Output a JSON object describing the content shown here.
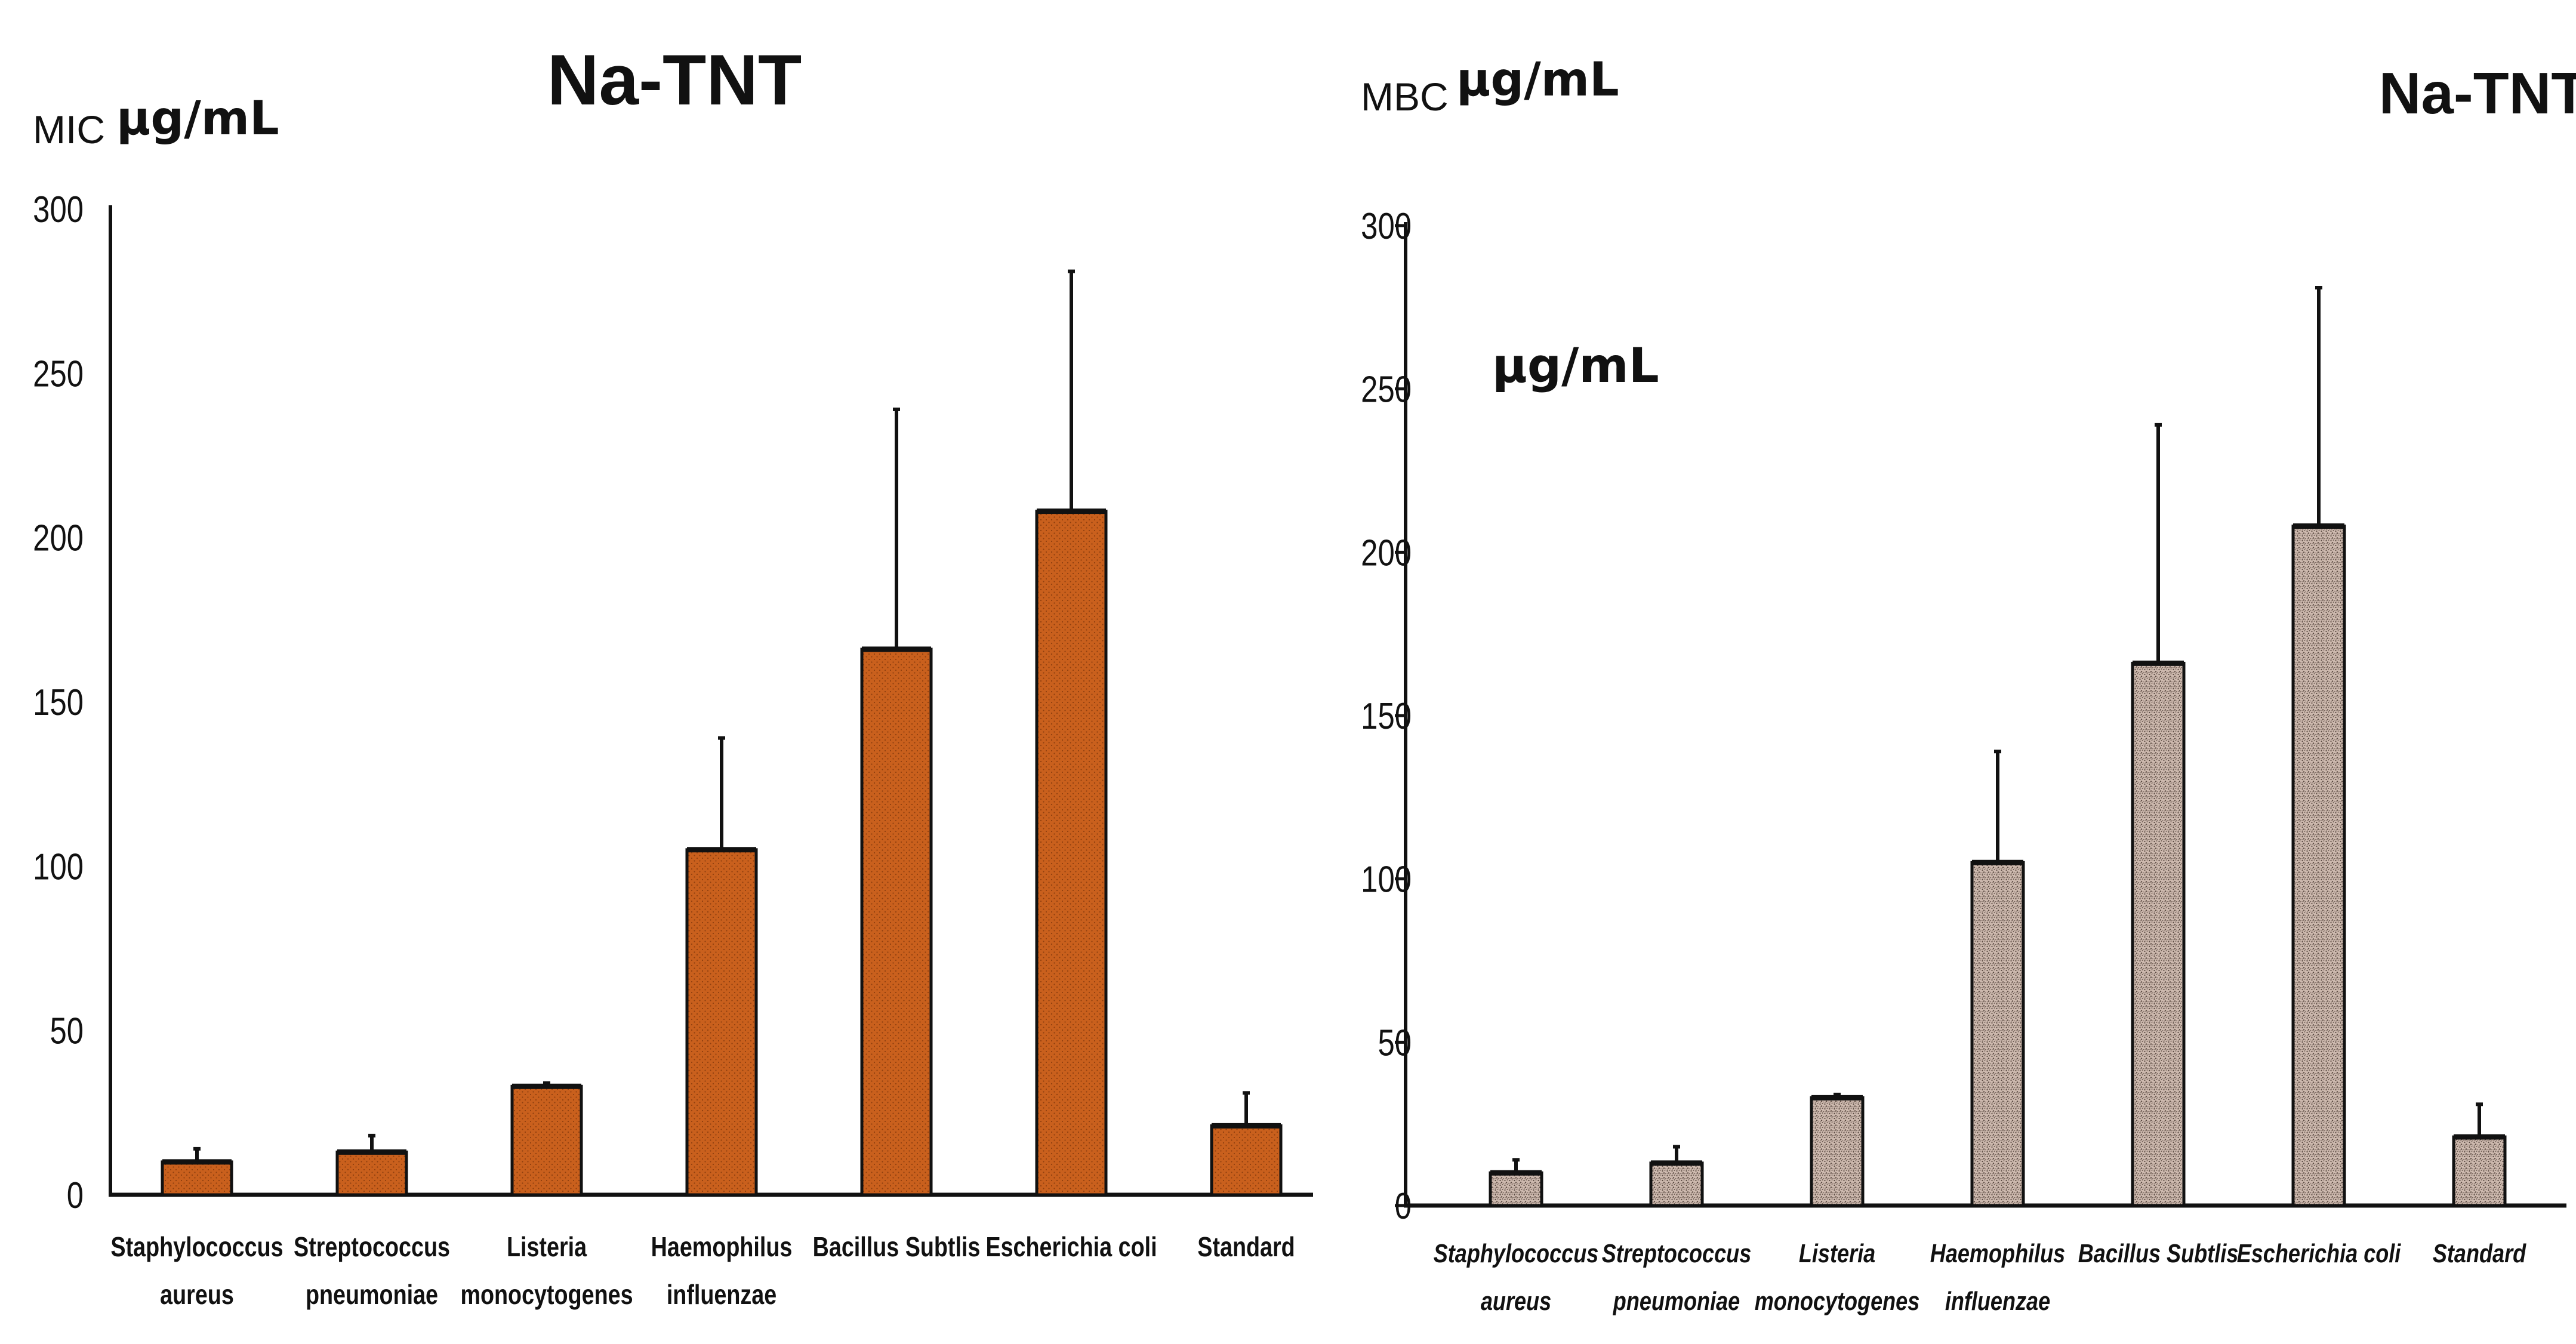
{
  "colors": {
    "mic_bar": "#C9601D",
    "mic_bar_dot": "#8E3F0E",
    "mbc_bar": "#CDB9AE",
    "mbc_bar_dot": "#5A4A42",
    "axis": "#111111",
    "bar_outline": "#111111"
  },
  "chart_data": [
    {
      "type": "bar",
      "panel": "mic",
      "title": "Na-TNT",
      "ylabel_tag": "MIC",
      "ylabel_unit": "µg/mL",
      "xlabel": "",
      "ylim": [
        0,
        300
      ],
      "yticks": [
        0,
        50,
        100,
        150,
        200,
        250,
        300
      ],
      "grid": false,
      "categories": [
        [
          "Staphylococcus",
          "aureus"
        ],
        [
          "Streptococcus",
          "pneumoniae"
        ],
        [
          "Listeria",
          "monocytogenes"
        ],
        [
          "Haemophilus",
          "influenzae"
        ],
        [
          "Bacillus Subtlis"
        ],
        [
          "Escherichia coli"
        ],
        [
          "Standard"
        ]
      ],
      "values": [
        10,
        13,
        33,
        105,
        166,
        208,
        21
      ],
      "errors": [
        4,
        5,
        1,
        34,
        73,
        73,
        10
      ]
    },
    {
      "type": "bar",
      "panel": "mbc",
      "title": "Na-TNT",
      "ylabel_tag": "MBC",
      "ylabel_unit": "µg/mL",
      "annotation": "µg/mL",
      "xlabel": "",
      "ylim": [
        0,
        300
      ],
      "yticks": [
        0,
        50,
        100,
        150,
        200,
        250,
        300
      ],
      "grid": false,
      "categories": [
        [
          "Staphylococcus",
          "aureus"
        ],
        [
          "Streptococcus",
          "pneumoniae"
        ],
        [
          "Listeria",
          "monocytogenes"
        ],
        [
          "Haemophilus",
          "influenzae"
        ],
        [
          "Bacillus Subtlis"
        ],
        [
          "Escherichia coli"
        ],
        [
          "Standard"
        ]
      ],
      "values": [
        10,
        13,
        33,
        105,
        166,
        208,
        21
      ],
      "errors": [
        4,
        5,
        1,
        34,
        73,
        73,
        10
      ]
    }
  ]
}
